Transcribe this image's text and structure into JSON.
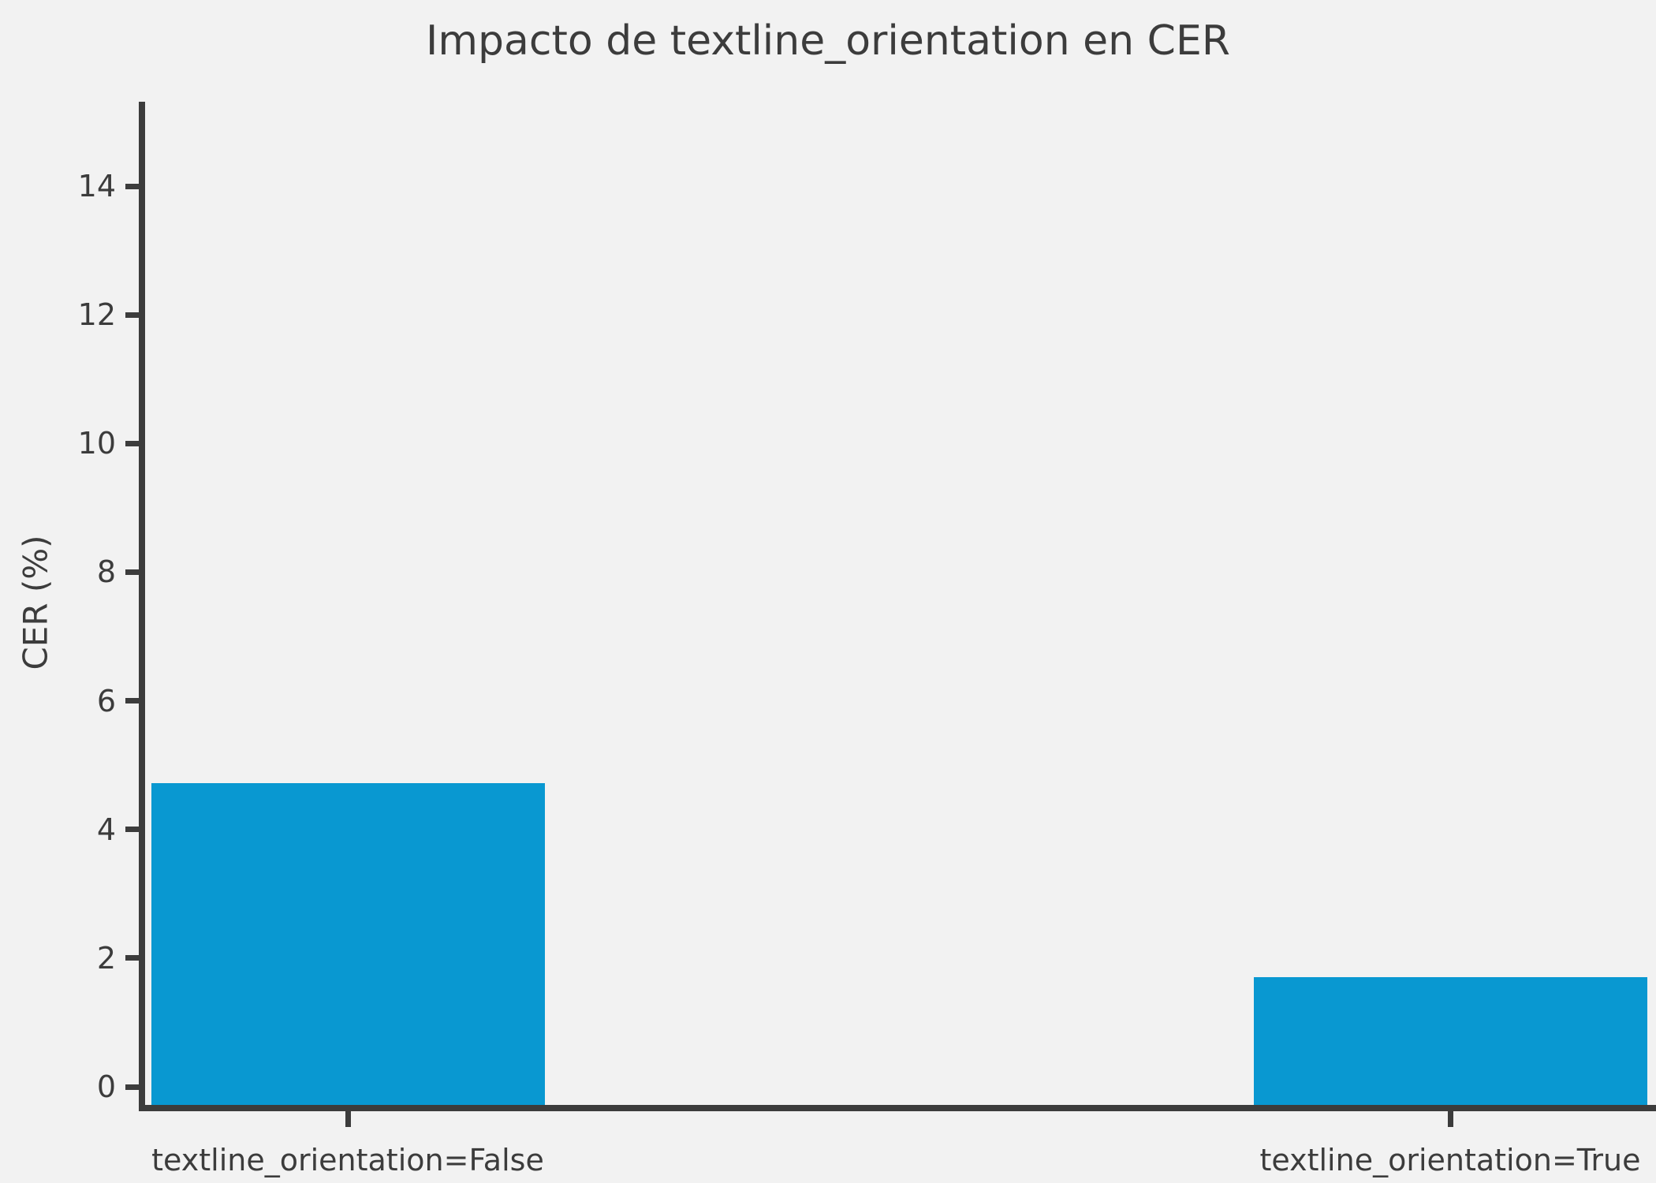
{
  "chart_data": {
    "type": "bar",
    "title": "Impacto de textline_orientation en CER",
    "xlabel": "",
    "ylabel": "CER (%)",
    "categories": [
      "textline_orientation=False",
      "textline_orientation=True"
    ],
    "values": [
      4.72,
      1.7
    ],
    "yticks": [
      0,
      2,
      4,
      6,
      8,
      10,
      12,
      14
    ],
    "ylim": [
      -0.3,
      15.3
    ],
    "grid": false,
    "legend": "none",
    "bar_color": "#0998d1",
    "background_color": "#f2f2f2",
    "axis_color": "#3c3c3c",
    "text_color": "#3c3c3c"
  }
}
